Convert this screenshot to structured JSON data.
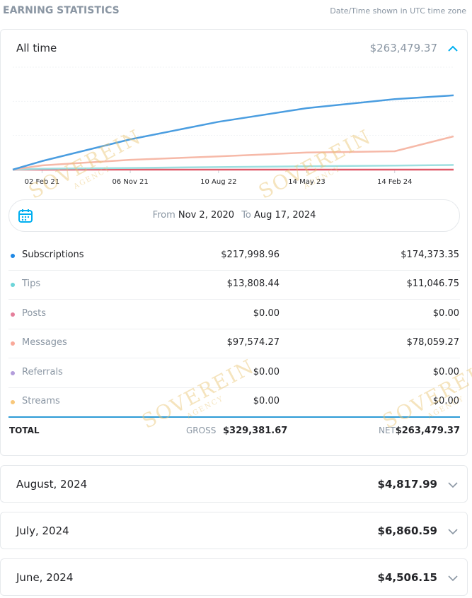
{
  "header": {
    "title": "EARNING STATISTICS",
    "note": "Date/Time shown in UTC time zone"
  },
  "watermark": {
    "brand": "SOVEREIN",
    "sub": "AGENCY"
  },
  "all_time": {
    "label": "All time",
    "amount": "$263,479.37"
  },
  "chart_data": {
    "type": "line",
    "x": [
      "2020-11-02",
      "2021-02-02",
      "2021-11-06",
      "2022-08-10",
      "2023-05-14",
      "2024-02-14",
      "2024-08-17"
    ],
    "xlim": [
      "2020-11-02",
      "2024-08-17"
    ],
    "xticks": [
      {
        "value": "2021-02-02",
        "label": "02 Feb 21"
      },
      {
        "value": "2021-11-06",
        "label": "06 Nov 21"
      },
      {
        "value": "2022-08-10",
        "label": "10 Aug 22"
      },
      {
        "value": "2023-05-14",
        "label": "14 May 23"
      },
      {
        "value": "2024-02-14",
        "label": "14 Feb 24"
      }
    ],
    "ylim": [
      0,
      240000
    ],
    "series": [
      {
        "name": "Subscriptions",
        "color": "#4a9de0",
        "values": [
          0,
          20000,
          71000,
          112000,
          144000,
          165000,
          174000
        ]
      },
      {
        "name": "Messages",
        "color": "#f6b9a8",
        "values": [
          0,
          10000,
          23000,
          31000,
          40000,
          43000,
          78000
        ]
      },
      {
        "name": "Tips",
        "color": "#9edfe0",
        "values": [
          0,
          2000,
          4000,
          6000,
          8000,
          9500,
          11000
        ]
      },
      {
        "name": "Posts",
        "color": "#e05a6a",
        "values": [
          0,
          0,
          0,
          0,
          0,
          0,
          0
        ]
      }
    ]
  },
  "range": {
    "from_label": "From",
    "from": "Nov 2, 2020",
    "to_label": "To",
    "to": "Aug 17, 2024"
  },
  "table": {
    "rows": [
      {
        "name": "Subscriptions",
        "color": "#1e88e5",
        "gross": "$217,998.96",
        "net": "$174,373.35"
      },
      {
        "name": "Tips",
        "color": "#6dd5d9",
        "gross": "$13,808.44",
        "net": "$11,046.75"
      },
      {
        "name": "Posts",
        "color": "#e57f9b",
        "gross": "$0.00",
        "net": "$0.00"
      },
      {
        "name": "Messages",
        "color": "#f9a99a",
        "gross": "$97,574.27",
        "net": "$78,059.27"
      },
      {
        "name": "Referrals",
        "color": "#b39ddb",
        "gross": "$0.00",
        "net": "$0.00"
      },
      {
        "name": "Streams",
        "color": "#f8c77a",
        "gross": "$0.00",
        "net": "$0.00"
      }
    ],
    "total": {
      "label": "TOTAL",
      "gross_label": "GROSS",
      "gross": "$329,381.67",
      "net_label": "NET",
      "net": "$263,479.37"
    }
  },
  "months": [
    {
      "label": "August, 2024",
      "amount": "$4,817.99"
    },
    {
      "label": "July, 2024",
      "amount": "$6,860.59"
    },
    {
      "label": "June, 2024",
      "amount": "$4,506.15"
    }
  ]
}
